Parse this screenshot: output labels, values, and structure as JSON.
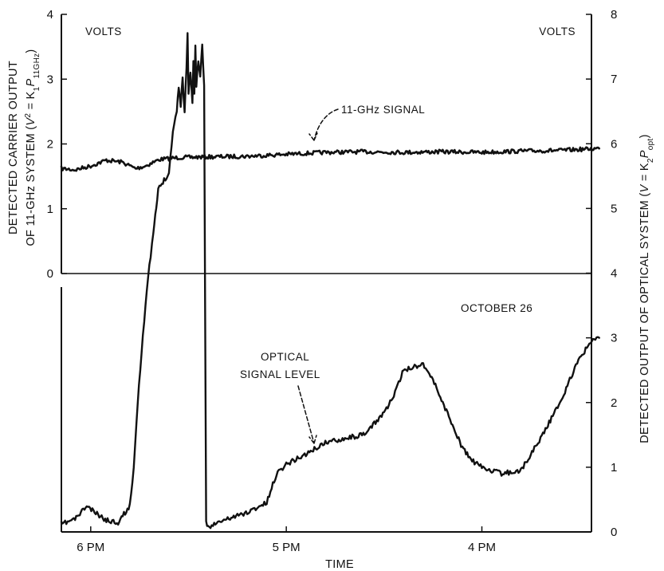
{
  "chart_data": {
    "type": "line",
    "title": "",
    "xlabel": "TIME",
    "x_ticks": [
      "6 PM",
      "5 PM",
      "4 PM"
    ],
    "ylabel_left_line1": "DETECTED CARRIER OUTPUT",
    "ylabel_left_line2_parts": [
      "OF 11-GHz SYSTEM (",
      "V",
      "2",
      " = K",
      "1",
      "P",
      "11GHz",
      ")"
    ],
    "ylabel_right_parts": [
      "DETECTED OUTPUT OF OPTICAL SYSTEM (",
      "V",
      " = K",
      "2",
      "P",
      "opt",
      ")"
    ],
    "left_unit": "VOLTS",
    "right_unit": "VOLTS",
    "left_axis": {
      "range": [
        0,
        4
      ],
      "ticks": [
        "0",
        "1",
        "2",
        "3",
        "4"
      ]
    },
    "right_axis": {
      "range": [
        0,
        8
      ],
      "ticks": [
        "0",
        "1",
        "2",
        "3",
        "4",
        "5",
        "6",
        "7",
        "8"
      ]
    },
    "annotations": {
      "ghz_signal": "11-GHz SIGNAL",
      "date": "OCTOBER 26",
      "optical_line1": "OPTICAL",
      "optical_line2": "SIGNAL LEVEL"
    },
    "x_range": [
      6.15,
      3.35
    ],
    "series": [
      {
        "name": "11-GHz SIGNAL",
        "axis": "left",
        "x": [
          6.15,
          6.08,
          6.0,
          5.92,
          5.84,
          5.77,
          5.72,
          5.65,
          5.55,
          5.4,
          5.2,
          5.0,
          4.8,
          4.6,
          4.4,
          4.2,
          4.0,
          3.8,
          3.6,
          3.4
        ],
        "y": [
          1.62,
          1.6,
          1.66,
          1.75,
          1.72,
          1.62,
          1.66,
          1.76,
          1.79,
          1.8,
          1.81,
          1.84,
          1.87,
          1.88,
          1.87,
          1.88,
          1.87,
          1.89,
          1.9,
          1.93
        ]
      },
      {
        "name": "OPTICAL SIGNAL LEVEL",
        "axis": "right",
        "x": [
          6.15,
          6.08,
          6.02,
          5.98,
          5.92,
          5.86,
          5.8,
          5.78,
          5.76,
          5.74,
          5.72,
          5.7,
          5.68,
          5.67,
          5.66,
          5.655,
          5.6,
          5.58,
          5.56,
          5.55,
          5.54,
          5.53,
          5.52,
          5.51,
          5.505,
          5.5,
          5.49,
          5.48,
          5.475,
          5.47,
          5.465,
          5.46,
          5.45,
          5.44,
          5.43,
          5.42,
          5.41,
          5.4,
          5.3,
          5.2,
          5.1,
          5.05,
          5.0,
          4.9,
          4.8,
          4.7,
          4.6,
          4.5,
          4.45,
          4.4,
          4.3,
          4.25,
          4.2,
          4.1,
          4.05,
          4.0,
          3.9,
          3.8,
          3.7,
          3.6,
          3.5,
          3.42,
          3.4
        ],
        "y": [
          0.12,
          0.2,
          0.4,
          0.3,
          0.18,
          0.15,
          0.4,
          1.0,
          2.0,
          2.8,
          3.5,
          4.1,
          4.6,
          4.9,
          5.1,
          5.3,
          5.55,
          6.2,
          6.5,
          6.9,
          6.6,
          7.0,
          6.5,
          7.2,
          7.7,
          6.8,
          7.1,
          6.6,
          7.3,
          6.8,
          7.5,
          6.9,
          7.3,
          7.0,
          7.5,
          6.9,
          0.15,
          0.08,
          0.2,
          0.3,
          0.45,
          0.9,
          1.05,
          1.2,
          1.38,
          1.45,
          1.5,
          1.85,
          2.1,
          2.5,
          2.6,
          2.35,
          2.0,
          1.3,
          1.1,
          1.0,
          0.9,
          0.95,
          1.45,
          2.0,
          2.7,
          3.0,
          3.0
        ]
      }
    ],
    "grid": false,
    "legend": "none"
  }
}
